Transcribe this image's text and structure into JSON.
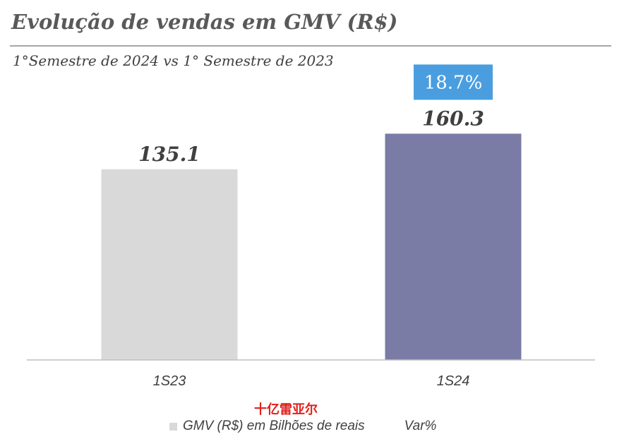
{
  "header": {
    "title": "Evolução de vendas em GMV (R$)",
    "subtitle": "1°Semestre de 2024 vs 1° Semestre de 2023"
  },
  "chart_data": {
    "type": "bar",
    "categories": [
      "1S23",
      "1S24"
    ],
    "values": [
      135.1,
      160.3
    ],
    "value_labels": [
      "135.1",
      "160.3"
    ],
    "bar_colors": [
      "#d9d9d9",
      "#7a7ca6"
    ],
    "series": [
      {
        "name": "GMV (R$) em Bilhões de reais",
        "values": [
          135.1,
          160.3
        ]
      }
    ],
    "variation": {
      "label": "18.7%",
      "category": "1S24",
      "color": "#4a9ee0"
    },
    "ylim": [
      0,
      180
    ],
    "grid": false,
    "axis": {
      "show_y": false
    },
    "legend": {
      "position": "bottom",
      "items": [
        "GMV (R$) em Bilhões de reais",
        "Var%"
      ]
    }
  },
  "watermark": "十亿雷亚尔"
}
